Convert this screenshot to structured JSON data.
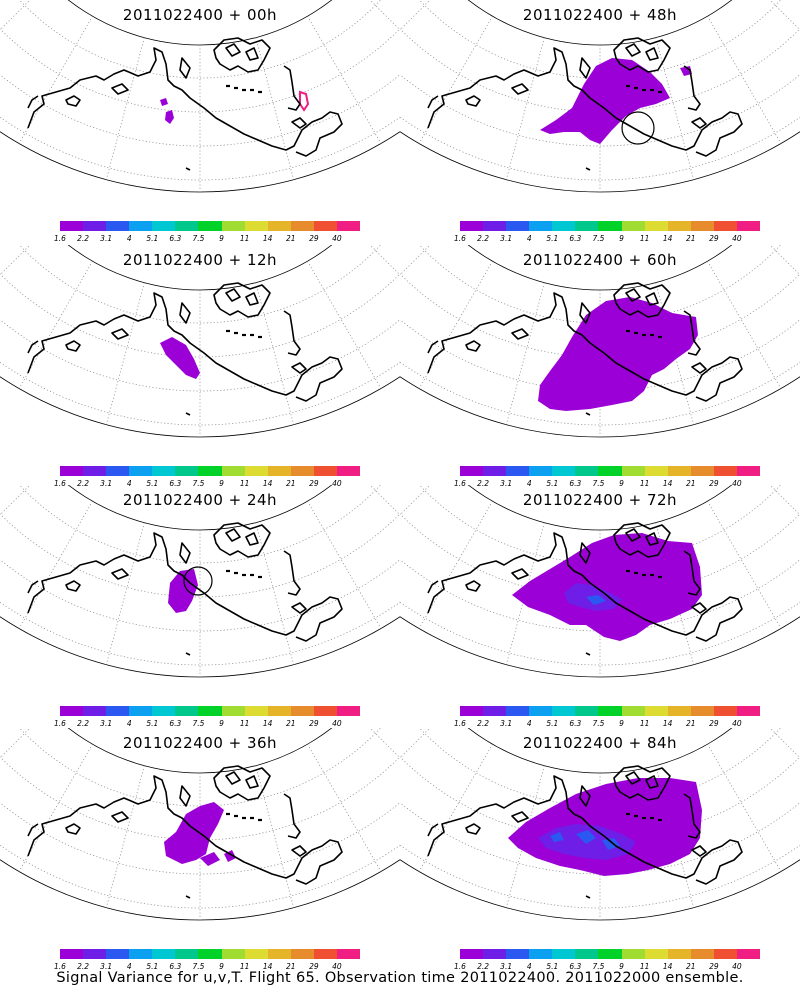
{
  "caption": "Signal Variance for u,v,T. Flight 65. Observation time 2011022400. 2011022000 ensemble.",
  "colorbar": {
    "colors": [
      "#9b00d7",
      "#6e1ee6",
      "#2a58f0",
      "#0ca0f0",
      "#00c8d2",
      "#00c88a",
      "#00d22a",
      "#a0dc32",
      "#dcdc32",
      "#e6b428",
      "#e68c2d",
      "#f05032",
      "#f01e82"
    ],
    "labels": [
      "1.6",
      "2.2",
      "3.1",
      "4",
      "5.1",
      "6.3",
      "7.5",
      "9",
      "11",
      "14",
      "21",
      "29",
      "40"
    ]
  },
  "panels": [
    {
      "id": "f00",
      "title": "2011022400 + 00h",
      "intensity": 0
    },
    {
      "id": "f48",
      "title": "2011022400 + 48h",
      "intensity": 2
    },
    {
      "id": "f12",
      "title": "2011022400 + 12h",
      "intensity": 0
    },
    {
      "id": "f60",
      "title": "2011022400 + 60h",
      "intensity": 3
    },
    {
      "id": "f24",
      "title": "2011022400 + 24h",
      "intensity": 1
    },
    {
      "id": "f72",
      "title": "2011022400 + 72h",
      "intensity": 4
    },
    {
      "id": "f36",
      "title": "2011022400 + 36h",
      "intensity": 1
    },
    {
      "id": "f84",
      "title": "2011022400 + 84h",
      "intensity": 5
    }
  ]
}
